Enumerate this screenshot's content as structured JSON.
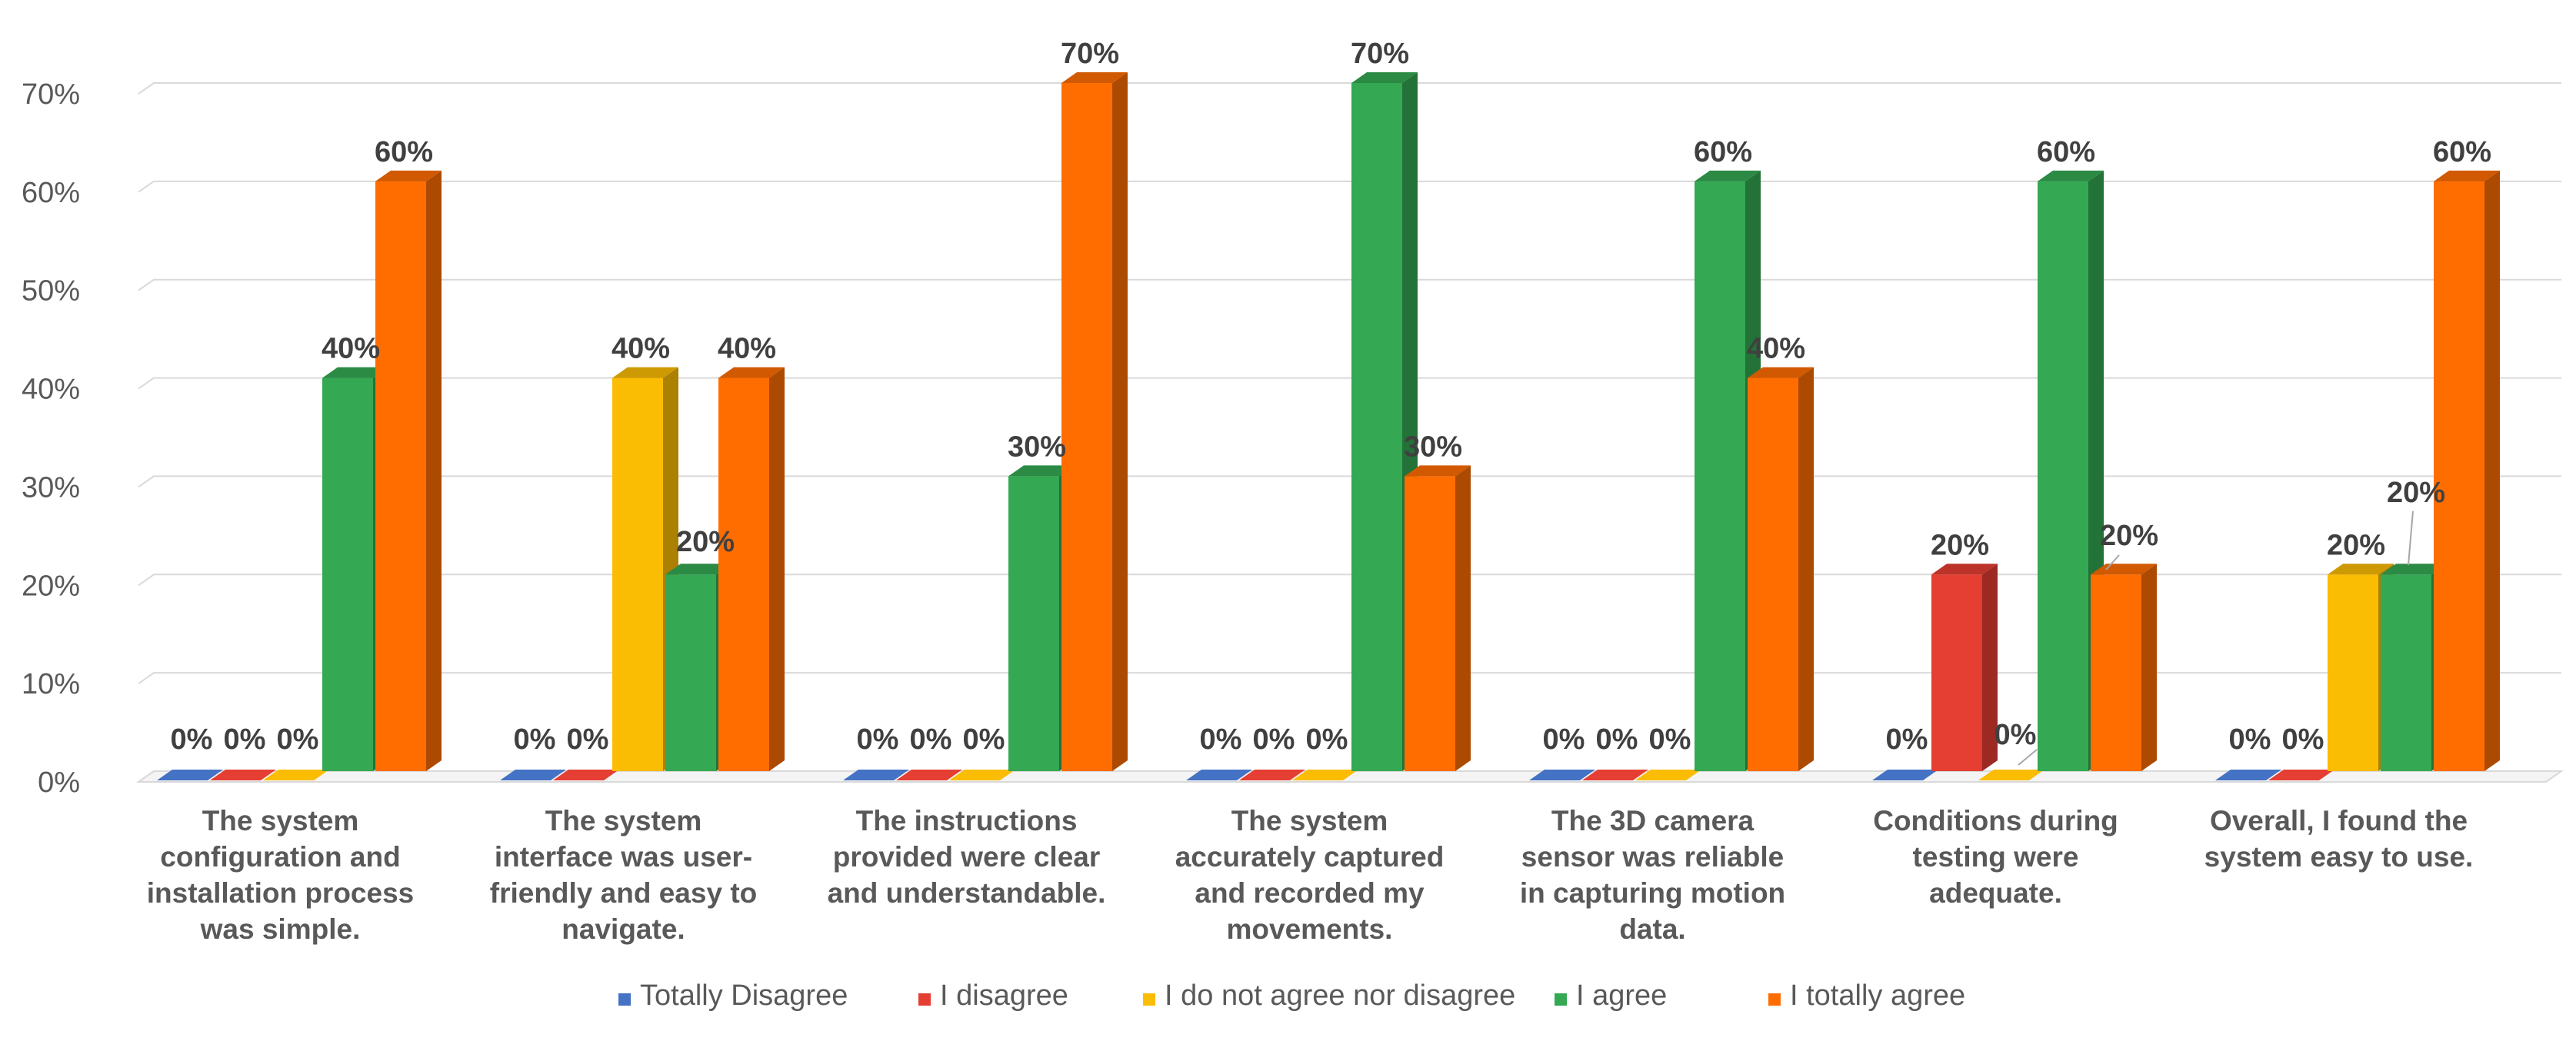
{
  "chart_data": {
    "type": "bar",
    "title": "",
    "xlabel": "",
    "ylabel": "",
    "ylim": [
      0,
      70
    ],
    "yticks": [
      "0%",
      "10%",
      "20%",
      "30%",
      "40%",
      "50%",
      "60%",
      "70%"
    ],
    "grid": true,
    "legend_position": "bottom",
    "categories": [
      [
        "The system",
        "configuration and",
        "installation process",
        "was simple."
      ],
      [
        "The system",
        "interface was user-",
        "friendly and easy to",
        "navigate."
      ],
      [
        "The instructions",
        "provided were clear",
        "and understandable."
      ],
      [
        "The system",
        "accurately captured",
        "and recorded my",
        "movements."
      ],
      [
        "The 3D camera",
        "sensor was reliable",
        "in capturing motion",
        "data."
      ],
      [
        "Conditions during",
        "testing were",
        "adequate."
      ],
      [
        "Overall, I found the",
        "system easy to use."
      ]
    ],
    "series": [
      {
        "name": "Totally Disagree",
        "color": "#4472c4",
        "values": [
          0,
          0,
          0,
          0,
          0,
          0,
          0
        ],
        "labels": [
          "0%",
          "0%",
          "0%",
          "0%",
          "0%",
          "0%",
          "0%"
        ]
      },
      {
        "name": "I disagree",
        "color": "#e53e33",
        "values": [
          0,
          0,
          0,
          0,
          0,
          20,
          0
        ],
        "labels": [
          "0%",
          "0%",
          "0%",
          "0%",
          "0%",
          "20%",
          "0%"
        ]
      },
      {
        "name": "I do not agree nor disagree",
        "color": "#fbbc04",
        "values": [
          0,
          40,
          0,
          0,
          0,
          0,
          20
        ],
        "labels": [
          "0%",
          "40%",
          "0%",
          "0%",
          "0%",
          "0%",
          "20%"
        ]
      },
      {
        "name": "I agree",
        "color": "#34a853",
        "values": [
          40,
          20,
          30,
          70,
          60,
          60,
          20
        ],
        "labels": [
          "40%",
          "20%",
          "30%",
          "70%",
          "60%",
          "60%",
          "20%"
        ]
      },
      {
        "name": "I totally agree",
        "color": "#ff6d01",
        "values": [
          60,
          40,
          70,
          30,
          40,
          20,
          60
        ],
        "labels": [
          "60%",
          "40%",
          "70%",
          "30%",
          "40%",
          "20%",
          "60%"
        ]
      }
    ]
  }
}
